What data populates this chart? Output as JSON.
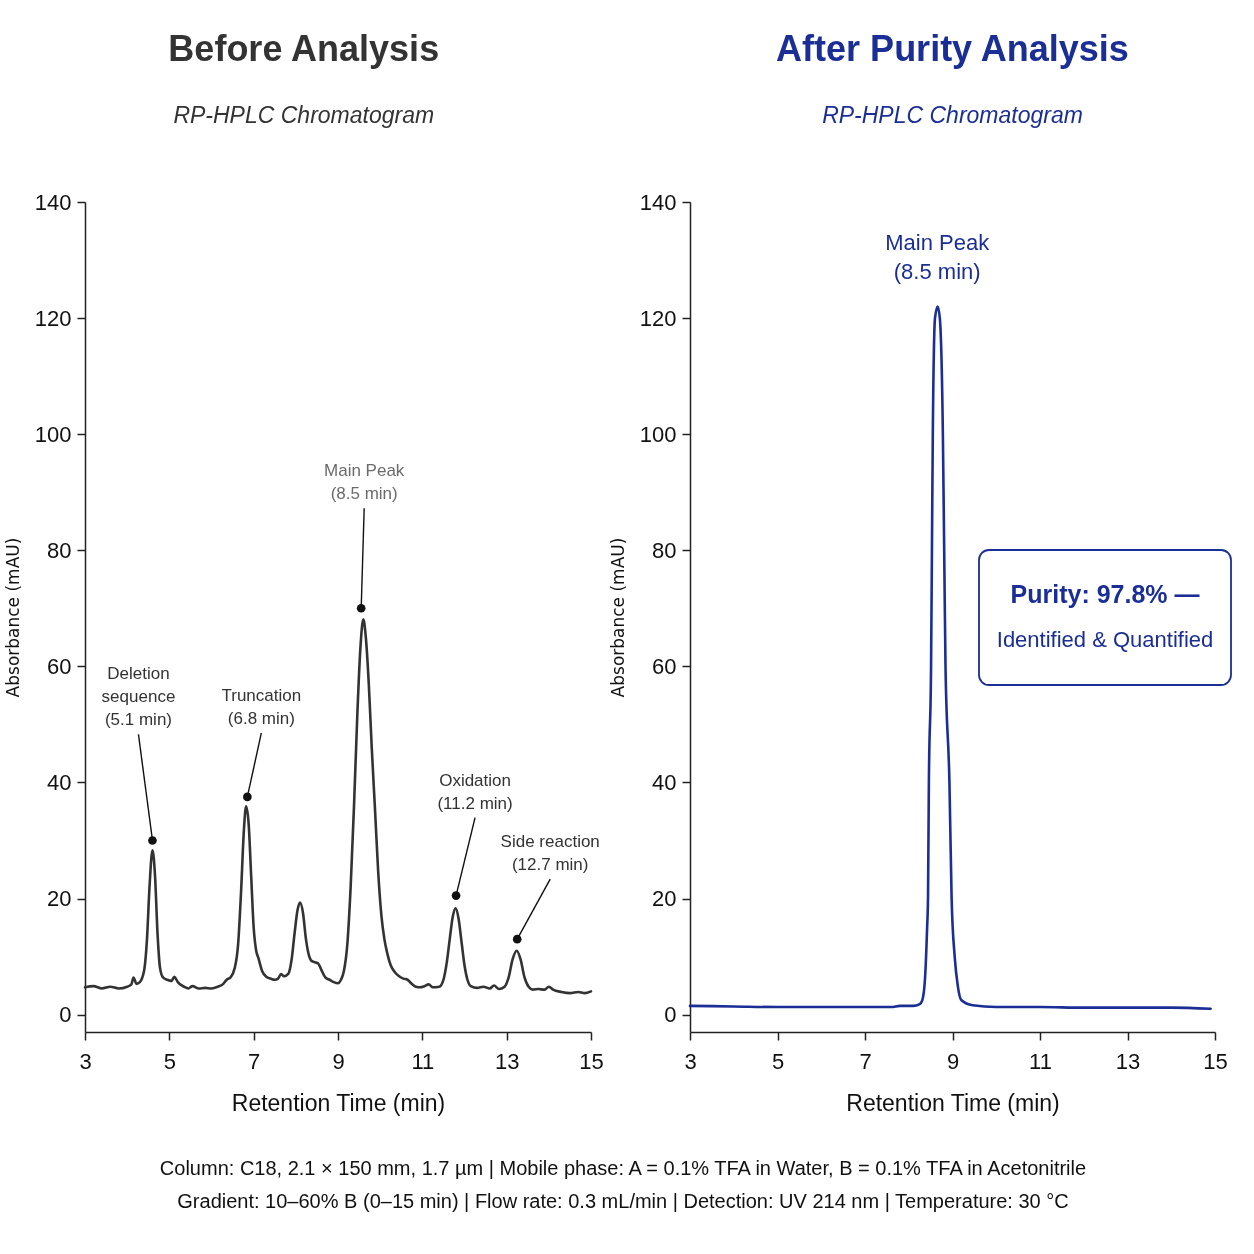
{
  "chart_data": [
    {
      "type": "line",
      "title": "Before Analysis",
      "subtitle": "RP-HPLC Chromatogram",
      "xlabel": "Retention Time (min)",
      "ylabel": "Absorbance (mAU)",
      "xlim": [
        3,
        15
      ],
      "ylim": [
        -3,
        140
      ],
      "xticks": [
        3,
        5,
        7,
        9,
        11,
        13,
        15
      ],
      "yticks": [
        0,
        20,
        40,
        60,
        80,
        100,
        120,
        140
      ],
      "x": [
        3.0,
        3.2,
        3.4,
        3.6,
        3.8,
        4.0,
        4.1,
        4.15,
        4.22,
        4.3,
        4.4,
        4.47,
        4.53,
        4.6,
        4.66,
        4.72,
        4.78,
        4.85,
        4.95,
        5.05,
        5.12,
        5.2,
        5.35,
        5.45,
        5.55,
        5.7,
        5.85,
        6.0,
        6.15,
        6.28,
        6.36,
        6.45,
        6.55,
        6.63,
        6.7,
        6.77,
        6.82,
        6.88,
        6.94,
        7.0,
        7.06,
        7.11,
        7.2,
        7.3,
        7.4,
        7.5,
        7.58,
        7.65,
        7.72,
        7.82,
        7.9,
        7.97,
        8.04,
        8.1,
        8.17,
        8.24,
        8.3,
        8.38,
        8.46,
        8.53,
        8.6,
        8.7,
        8.8,
        8.9,
        9.0,
        9.07,
        9.14,
        9.22,
        9.3,
        9.38,
        9.46,
        9.53,
        9.6,
        9.66,
        9.73,
        9.8,
        9.88,
        9.95,
        10.03,
        10.1,
        10.17,
        10.25,
        10.35,
        10.45,
        10.55,
        10.65,
        10.75,
        10.85,
        10.95,
        11.05,
        11.15,
        11.25,
        11.4,
        11.5,
        11.58,
        11.65,
        11.72,
        11.79,
        11.86,
        11.93,
        12.0,
        12.07,
        12.15,
        12.3,
        12.45,
        12.6,
        12.7,
        12.82,
        12.95,
        13.05,
        13.14,
        13.24,
        13.33,
        13.42,
        13.52,
        13.62,
        13.75,
        13.9,
        14.0,
        14.1,
        14.3,
        14.5,
        14.7,
        14.85,
        15.0
      ],
      "series": [
        {
          "color": "#333333",
          "values": [
            4.7,
            4.9,
            4.5,
            4.8,
            4.5,
            4.8,
            5.2,
            6.4,
            5.3,
            5.6,
            7.5,
            13,
            22,
            28.3,
            24,
            14,
            8,
            6.4,
            6.0,
            5.8,
            6.5,
            5.6,
            4.8,
            4.5,
            4.9,
            4.5,
            4.6,
            4.5,
            4.8,
            5.3,
            6.0,
            6.4,
            8,
            12,
            21,
            32,
            35.9,
            33,
            24,
            15,
            11,
            9.8,
            7.5,
            6.5,
            6.2,
            6.0,
            6.2,
            7.0,
            6.6,
            7.0,
            9.5,
            14,
            18,
            19.3,
            17.5,
            13,
            10.5,
            9.2,
            9.0,
            8.8,
            7.8,
            6.4,
            6.0,
            5.6,
            5.4,
            6.0,
            7.5,
            12,
            22,
            36,
            52,
            63,
            68.1,
            65,
            57,
            46,
            35,
            25,
            17,
            13,
            10.5,
            8.5,
            7.3,
            6.6,
            6.2,
            6.0,
            5.3,
            4.8,
            4.7,
            4.9,
            5.2,
            4.7,
            4.8,
            6,
            9,
            13,
            16.8,
            18.3,
            16.5,
            12.5,
            8.5,
            6,
            4.9,
            4.6,
            4.8,
            4.5,
            5.0,
            4.4,
            4.8,
            6.5,
            9.5,
            11.0,
            9.5,
            6.5,
            4.8,
            4.3,
            4.4,
            4.3,
            4.8,
            4.3,
            3.9,
            3.7,
            3.9,
            3.7,
            4.0
          ]
        }
      ],
      "annotations": [
        {
          "text": "Deletion\nsequence\n(5.1 min)",
          "x": 4.6,
          "y": 30
        },
        {
          "text": "Truncation\n(6.8 min)",
          "x": 6.85,
          "y": 37.5
        },
        {
          "text": "Main Peak\n(8.5 min)",
          "x": 9.55,
          "y": 70
        },
        {
          "text": "Oxidation\n(11.2 min)",
          "x": 11.8,
          "y": 20.5
        },
        {
          "text": "Side reaction\n(12.7 min)",
          "x": 13.25,
          "y": 13
        }
      ]
    },
    {
      "type": "line",
      "title": "After Purity Analysis",
      "subtitle": "RP-HPLC Chromatogram",
      "xlabel": "Retention Time (min)",
      "ylabel": "Absorbance (mAU)",
      "xlim": [
        3,
        15
      ],
      "ylim": [
        -3,
        140
      ],
      "xticks": [
        3,
        5,
        7,
        9,
        11,
        13,
        15
      ],
      "yticks": [
        0,
        20,
        40,
        60,
        80,
        100,
        120,
        140
      ],
      "x": [
        3,
        4,
        5,
        6,
        7,
        7.6,
        7.8,
        8.1,
        8.25,
        8.31,
        8.37,
        8.42,
        8.44,
        8.46,
        8.51,
        8.53,
        8.55,
        8.6,
        8.66,
        8.71,
        8.78,
        8.81,
        8.84,
        8.93,
        8.98,
        9.05,
        9.12,
        9.2,
        9.46,
        10,
        11,
        12,
        13,
        14,
        14.9
      ],
      "series": [
        {
          "color": "#1a2e96",
          "values": [
            1.5,
            1.4,
            1.3,
            1.3,
            1.3,
            1.3,
            1.5,
            1.5,
            1.8,
            2.5,
            6,
            15,
            20,
            40,
            60,
            80,
            100,
            120,
            122,
            120,
            100,
            80,
            60,
            40,
            20,
            10,
            5,
            2.5,
            1.6,
            1.3,
            1.3,
            1.2,
            1.2,
            1.2,
            1.0
          ]
        }
      ],
      "annotations": [
        {
          "text": "Main Peak\n(8.5 min)",
          "x": 8.65,
          "y": 122
        },
        "Purity: 97.8% —",
        "Identified & Quantified"
      ]
    },
    {
      "type": "other",
      "annotations": [
        "Column: C18, 2.1 × 150 mm, 1.7 µm | Mobile phase: A = 0.1% TFA in Water, B = 0.1% TFA in Acetonitrile",
        "Gradient: 10–60% B (0–15 min) | Flow rate: 0.3 mL/min | Detection: UV 214 nm | Temperature: 30 °C"
      ]
    }
  ]
}
